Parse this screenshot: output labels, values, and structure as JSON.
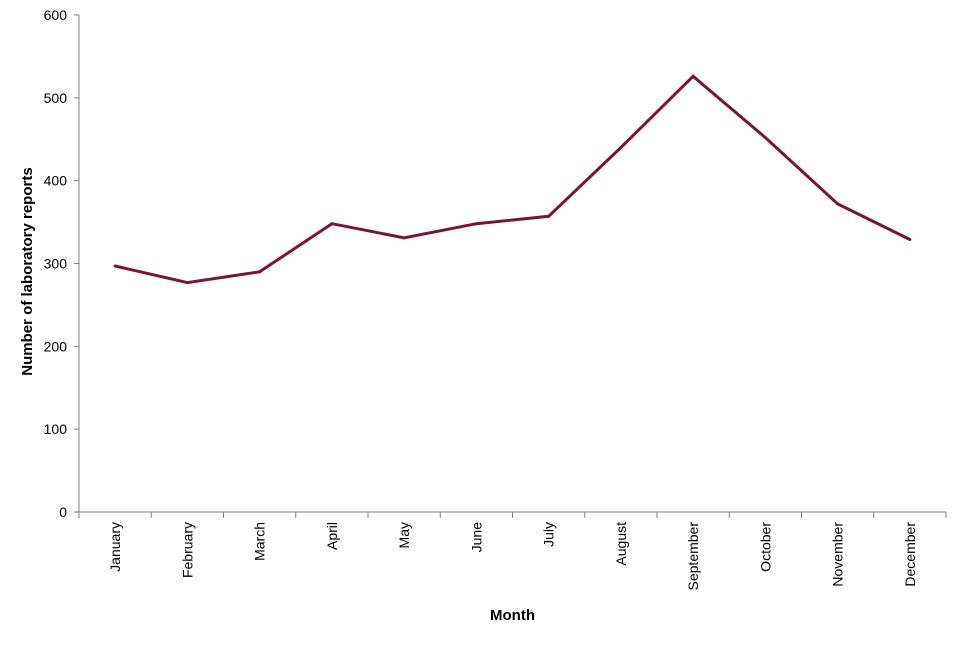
{
  "chart_data": {
    "type": "line",
    "title": "",
    "xlabel": "Month",
    "ylabel": "Number of laboratory reports",
    "categories": [
      "January",
      "February",
      "March",
      "April",
      "May",
      "June",
      "July",
      "August",
      "September",
      "October",
      "November",
      "December"
    ],
    "series": [
      {
        "values": [
          297,
          277,
          290,
          348,
          331,
          348,
          357,
          440,
          526,
          452,
          372,
          329
        ],
        "color": "#7b1533"
      }
    ],
    "ylim": [
      0,
      600
    ],
    "yticks": [
      0,
      100,
      200,
      300,
      400,
      500,
      600
    ],
    "grid": false,
    "legend": "none"
  }
}
